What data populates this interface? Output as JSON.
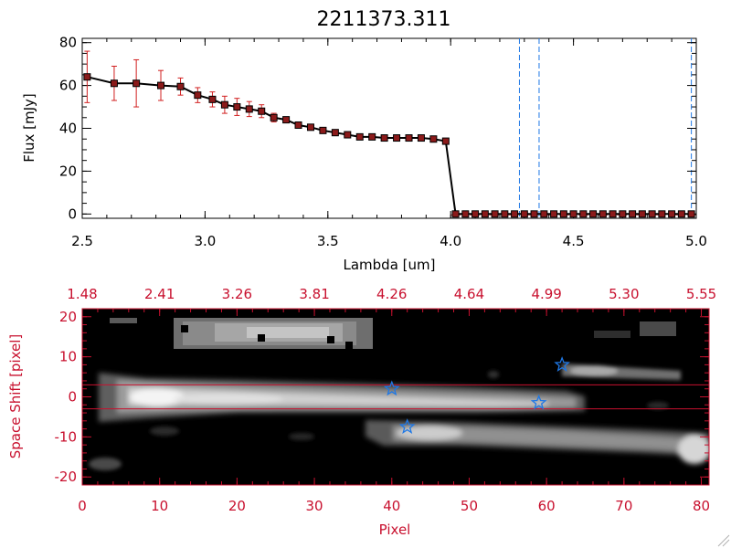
{
  "title": "2211373.311",
  "colors": {
    "spectrum_line": "#000000",
    "data_point": "#8b1a1a",
    "error_bar": "#d11f1f",
    "line_marker": "#1e78e6",
    "image_frame": "#c8102e",
    "star_marker": "#1e78e6"
  },
  "chart_data": [
    {
      "type": "line",
      "title": "2211373.311",
      "xlabel": "Lambda [um]",
      "ylabel": "Flux [mJy]",
      "xlim": [
        2.5,
        5.0
      ],
      "ylim": [
        -2,
        82
      ],
      "x_ticks": [
        "2.5",
        "3.0",
        "3.5",
        "4.0",
        "4.5",
        "5.0"
      ],
      "y_ticks": [
        "0",
        "20",
        "40",
        "60",
        "80"
      ],
      "vertical_lines": [
        4.28,
        4.36,
        4.98
      ],
      "series": [
        {
          "x": [
            2.52,
            2.63,
            2.72,
            2.82,
            2.9,
            2.97,
            3.03,
            3.08,
            3.13,
            3.18,
            3.23,
            3.28,
            3.33,
            3.38,
            3.43,
            3.48,
            3.53,
            3.58,
            3.63,
            3.68,
            3.73,
            3.78,
            3.83,
            3.88,
            3.93,
            3.98,
            4.02,
            4.06,
            4.1,
            4.14,
            4.18,
            4.22,
            4.26,
            4.3,
            4.34,
            4.38,
            4.42,
            4.46,
            4.5,
            4.54,
            4.58,
            4.62,
            4.66,
            4.7,
            4.74,
            4.78,
            4.82,
            4.86,
            4.9,
            4.94,
            4.98
          ],
          "y": [
            64,
            61,
            61,
            60,
            59.5,
            55.5,
            53.5,
            51,
            50,
            49,
            48,
            45,
            44,
            41.5,
            40.5,
            39,
            38,
            37,
            36,
            36,
            35.5,
            35.5,
            35.5,
            35.5,
            35,
            34,
            0,
            0,
            0,
            0,
            0,
            0,
            0,
            0,
            0,
            0,
            0,
            0,
            0,
            0,
            0,
            0,
            0,
            0,
            0,
            0,
            0,
            0,
            0,
            0,
            0
          ],
          "err": [
            12,
            8,
            11,
            7,
            4,
            3.5,
            3.5,
            4,
            4,
            3.5,
            3,
            2,
            1,
            1,
            1,
            1,
            0,
            0,
            0,
            0,
            0,
            0,
            0,
            0,
            0,
            0,
            0,
            0,
            0,
            0,
            0,
            0,
            0,
            0,
            0,
            0,
            0,
            0,
            0,
            0,
            0,
            0,
            0,
            0,
            0,
            0,
            0,
            0,
            0,
            0,
            0
          ]
        }
      ]
    },
    {
      "type": "heatmap",
      "xlabel": "Pixel",
      "ylabel": "Space Shift [pixel]",
      "xlim": [
        0,
        81
      ],
      "ylim": [
        -22,
        22
      ],
      "x_ticks": [
        "0",
        "10",
        "20",
        "30",
        "40",
        "50",
        "60",
        "70",
        "80"
      ],
      "y_ticks": [
        "-20",
        "-10",
        "0",
        "10",
        "20"
      ],
      "top_x_ticks": [
        "1.48",
        "2.41",
        "3.26",
        "3.81",
        "4.26",
        "4.64",
        "4.99",
        "5.30",
        "5.55"
      ],
      "horizontal_lines": [
        3,
        -3
      ],
      "stars": [
        {
          "x": 40,
          "y": 2
        },
        {
          "x": 59,
          "y": -1.5
        },
        {
          "x": 62,
          "y": 8
        },
        {
          "x": 42,
          "y": -7.5
        }
      ]
    }
  ]
}
